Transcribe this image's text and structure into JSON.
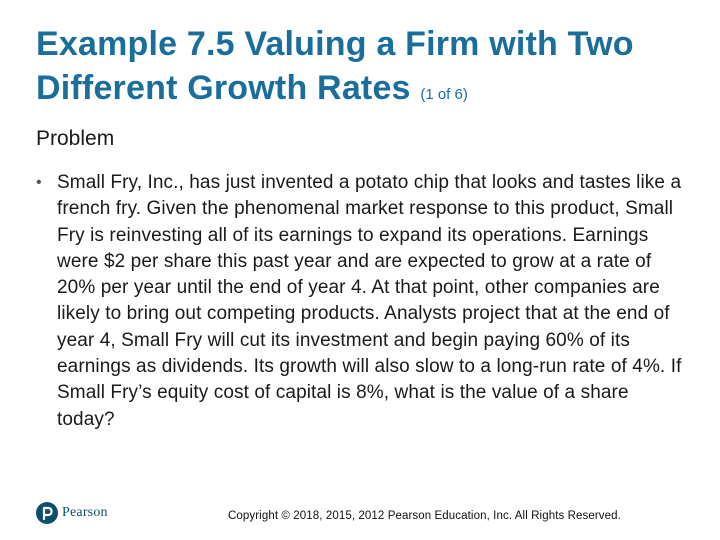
{
  "title": {
    "main": "Example 7.5 Valuing a Firm with Two Different Growth Rates",
    "part": "(1 of 6)"
  },
  "section_heading": "Problem",
  "bullet_marker": "•",
  "bullets": [
    "Small Fry, Inc., has just invented a potato chip that looks and tastes like a french fry. Given the phenomenal market response to this product, Small Fry is reinvesting all of its earnings to expand its operations. Earnings were $2 per share this past year and are expected to grow at a rate of 20% per year until the end of year 4. At that point, other companies are likely to bring out competing products. Analysts project that at the end of year 4, Small Fry will cut its investment and begin paying 60% of its earnings as dividends. Its growth will also slow to a long-run rate of 4%. If Small Fry’s equity cost of capital is 8%, what is the value of a share today?"
  ],
  "footer": {
    "logo_text": "Pearson",
    "logo_icon": "pearson-logo-icon",
    "copyright": "Copyright © 2018, 2015, 2012 Pearson Education, Inc. All Rights Reserved."
  },
  "colors": {
    "title": "#1a6e9c",
    "logo": "#0f4d6e"
  }
}
